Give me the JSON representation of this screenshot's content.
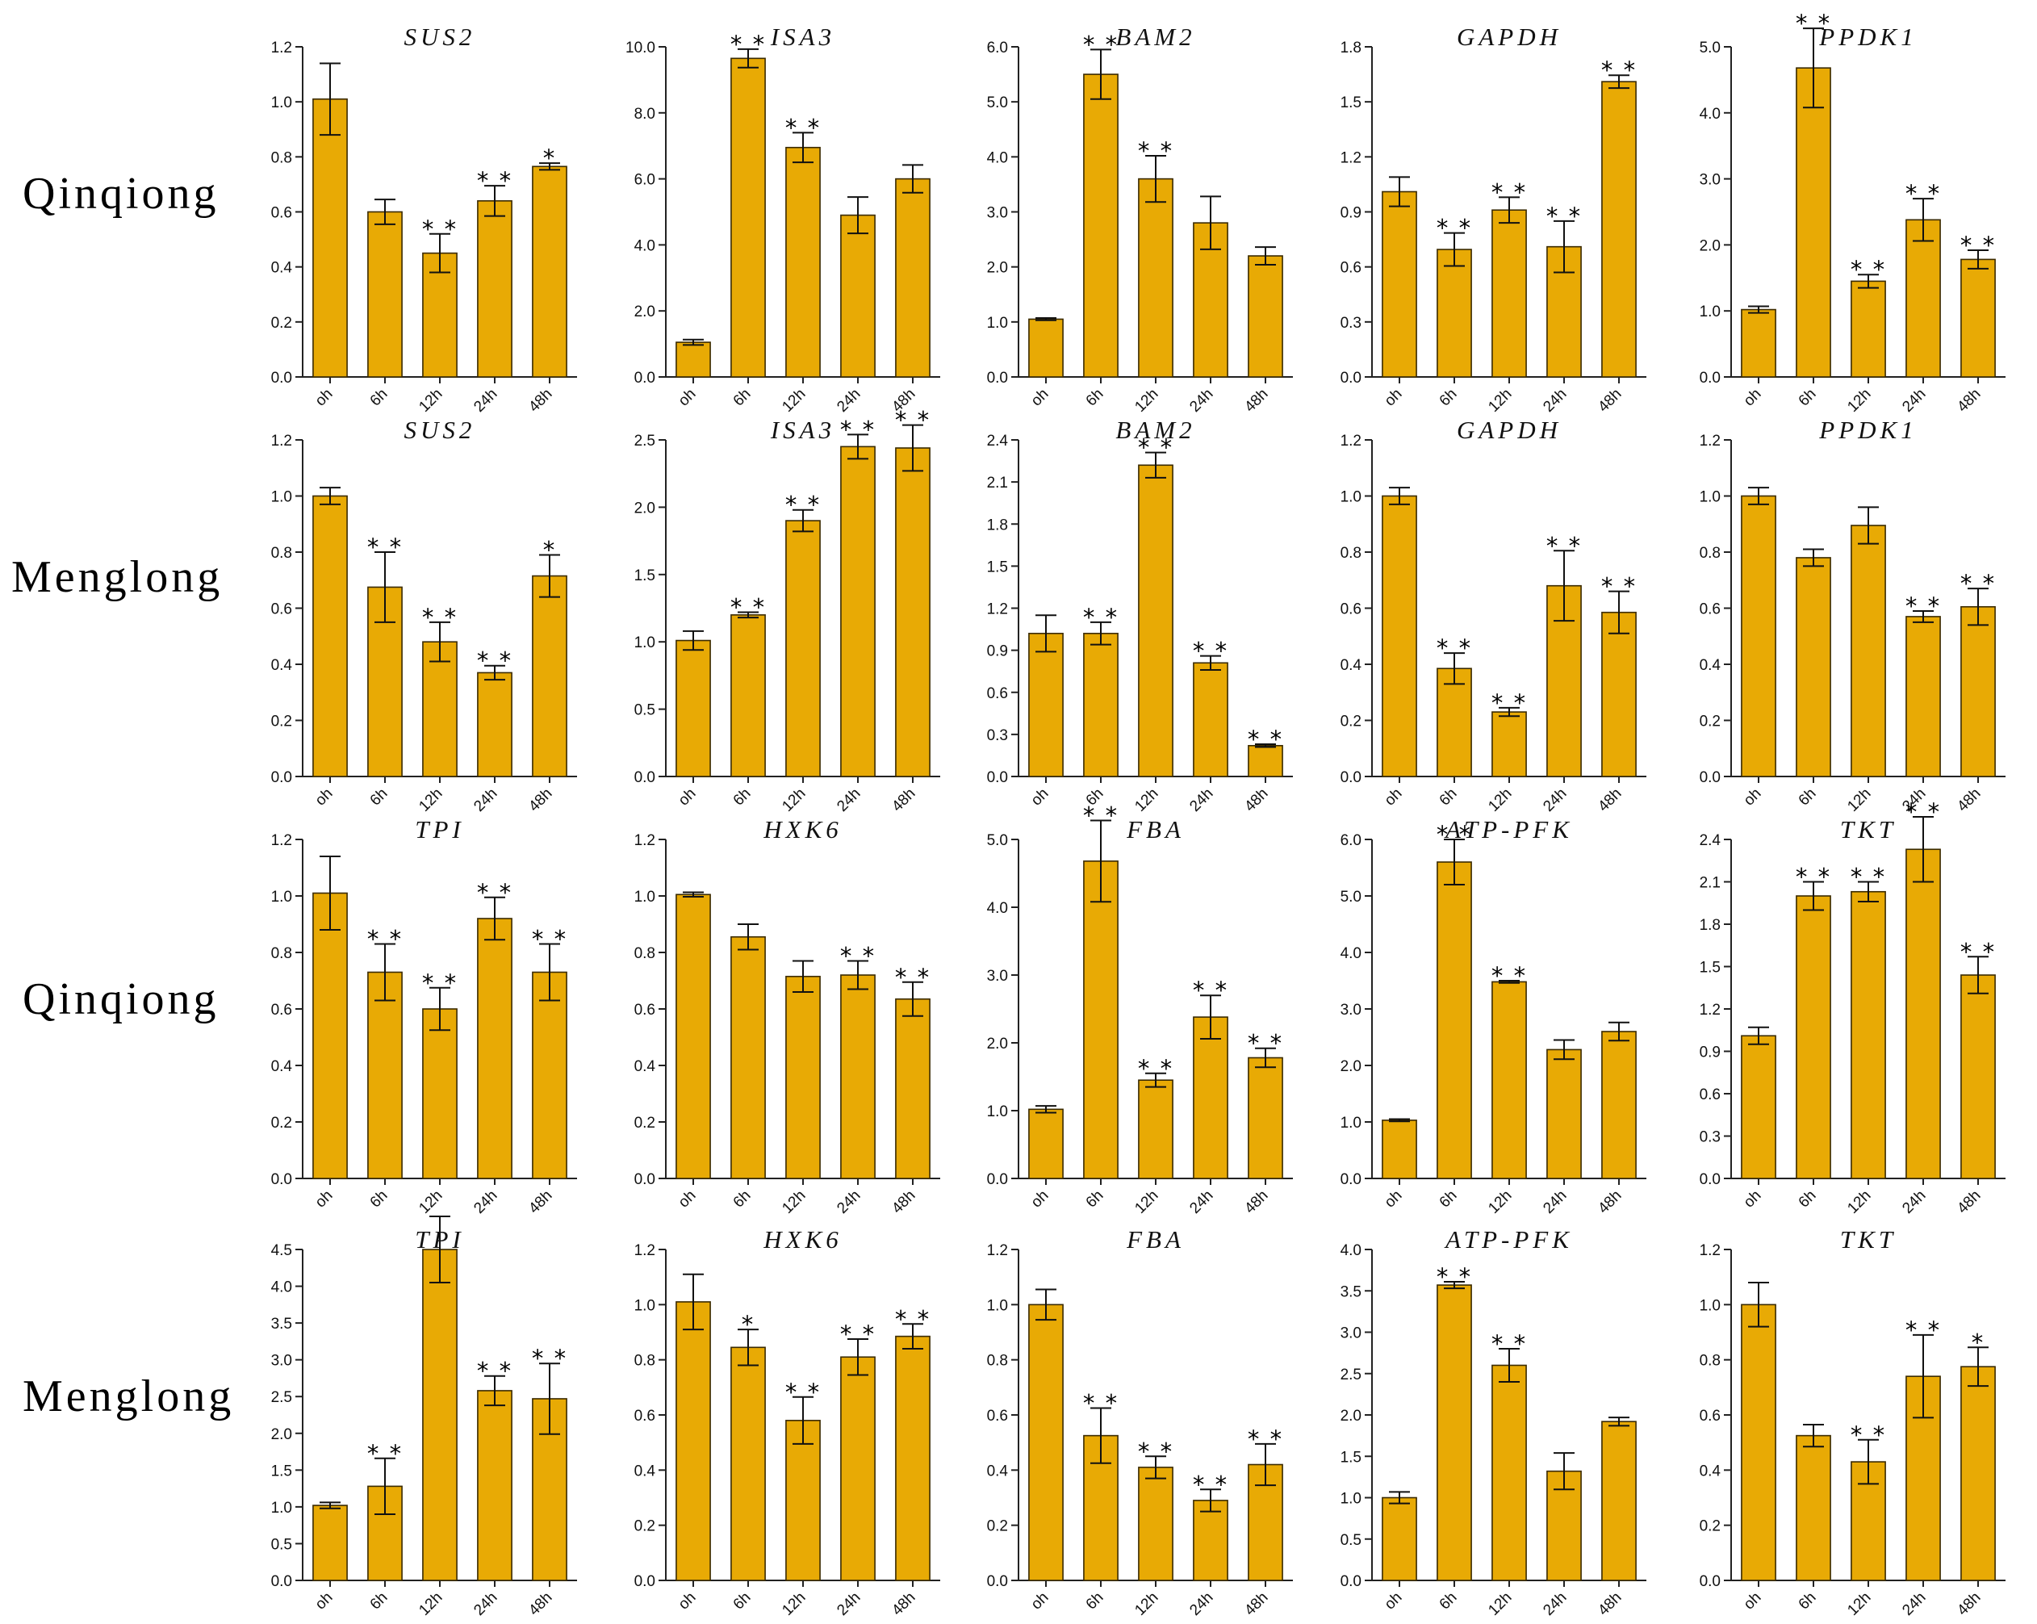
{
  "row_labels": [
    "Qinqiong",
    "Menglong",
    "Qinqiong",
    "Menglong"
  ],
  "bar_color": "#E8AA05",
  "chart_data": [
    {
      "type": "bar",
      "title": "SUS2",
      "categories": [
        "oh",
        "6h",
        "12h",
        "24h",
        "48h"
      ],
      "values": [
        1.01,
        0.6,
        0.45,
        0.64,
        0.765
      ],
      "errors": [
        0.13,
        0.045,
        0.07,
        0.055,
        0.012
      ],
      "significance": [
        "",
        "",
        "**",
        "**",
        "*"
      ],
      "ylim": [
        0,
        1.2
      ],
      "yticks": [
        "0.0",
        "0.2",
        "0.4",
        "0.6",
        "0.8",
        "1.0",
        "1.2"
      ]
    },
    {
      "type": "bar",
      "title": "ISA3",
      "categories": [
        "oh",
        "6h",
        "12h",
        "24h",
        "48h"
      ],
      "values": [
        1.05,
        9.65,
        6.95,
        4.9,
        6.0
      ],
      "errors": [
        0.08,
        0.28,
        0.45,
        0.55,
        0.42
      ],
      "significance": [
        "",
        "**",
        "**",
        "",
        ""
      ],
      "ylim": [
        0,
        10.0
      ],
      "yticks": [
        "0.0",
        "2.0",
        "4.0",
        "6.0",
        "8.0",
        "10.0"
      ]
    },
    {
      "type": "bar",
      "title": "BAM2",
      "categories": [
        "oh",
        "6h",
        "12h",
        "24h",
        "48h"
      ],
      "values": [
        1.05,
        5.5,
        3.6,
        2.8,
        2.2
      ],
      "errors": [
        0.02,
        0.45,
        0.42,
        0.48,
        0.16
      ],
      "significance": [
        "",
        "**",
        "**",
        "",
        ""
      ],
      "ylim": [
        0,
        6.0
      ],
      "yticks": [
        "0.0",
        "1.0",
        "2.0",
        "3.0",
        "4.0",
        "5.0",
        "6.0"
      ]
    },
    {
      "type": "bar",
      "title": "GAPDH",
      "categories": [
        "oh",
        "6h",
        "12h",
        "24h",
        "48h"
      ],
      "values": [
        1.01,
        0.695,
        0.91,
        0.71,
        1.61
      ],
      "errors": [
        0.08,
        0.09,
        0.07,
        0.14,
        0.035
      ],
      "significance": [
        "",
        "**",
        "**",
        "**",
        "**"
      ],
      "ylim": [
        0,
        1.8
      ],
      "yticks": [
        "0.0",
        "0.3",
        "0.6",
        "0.9",
        "1.2",
        "1.5",
        "1.8"
      ]
    },
    {
      "type": "bar",
      "title": "PPDK1",
      "categories": [
        "oh",
        "6h",
        "12h",
        "24h",
        "48h"
      ],
      "values": [
        1.02,
        4.68,
        1.45,
        2.38,
        1.78
      ],
      "errors": [
        0.05,
        0.6,
        0.1,
        0.32,
        0.14
      ],
      "significance": [
        "",
        "**",
        "**",
        "**",
        "**"
      ],
      "ylim": [
        0,
        5.0
      ],
      "yticks": [
        "0.0",
        "1.0",
        "2.0",
        "3.0",
        "4.0",
        "5.0"
      ]
    },
    {
      "type": "bar",
      "title": "SUS2",
      "categories": [
        "oh",
        "6h",
        "12h",
        "24h",
        "48h"
      ],
      "values": [
        1.0,
        0.675,
        0.48,
        0.37,
        0.715
      ],
      "errors": [
        0.03,
        0.125,
        0.07,
        0.025,
        0.075
      ],
      "significance": [
        "",
        "**",
        "**",
        "**",
        "*"
      ],
      "ylim": [
        0,
        1.2
      ],
      "yticks": [
        "0.0",
        "0.2",
        "0.4",
        "0.6",
        "0.8",
        "1.0",
        "1.2"
      ]
    },
    {
      "type": "bar",
      "title": "ISA3",
      "categories": [
        "oh",
        "6h",
        "12h",
        "24h",
        "48h"
      ],
      "values": [
        1.01,
        1.2,
        1.9,
        2.45,
        2.44
      ],
      "errors": [
        0.07,
        0.02,
        0.08,
        0.09,
        0.17
      ],
      "significance": [
        "",
        "**",
        "**",
        "**",
        "**"
      ],
      "ylim": [
        0,
        2.5
      ],
      "yticks": [
        "0.0",
        "0.5",
        "1.0",
        "1.5",
        "2.0",
        "2.5"
      ]
    },
    {
      "type": "bar",
      "title": "BAM2",
      "categories": [
        "oh",
        "6h",
        "12h",
        "24h",
        "48h"
      ],
      "values": [
        1.02,
        1.02,
        2.22,
        0.81,
        0.22
      ],
      "errors": [
        0.13,
        0.08,
        0.09,
        0.05,
        0.01
      ],
      "significance": [
        "",
        "**",
        "**",
        "**",
        "**"
      ],
      "ylim": [
        0,
        2.4
      ],
      "yticks": [
        "0.0",
        "0.3",
        "0.6",
        "0.9",
        "1.2",
        "1.5",
        "1.8",
        "2.1",
        "2.4"
      ]
    },
    {
      "type": "bar",
      "title": "GAPDH",
      "categories": [
        "oh",
        "6h",
        "12h",
        "24h",
        "48h"
      ],
      "values": [
        1.0,
        0.385,
        0.23,
        0.68,
        0.585
      ],
      "errors": [
        0.03,
        0.055,
        0.015,
        0.125,
        0.075
      ],
      "significance": [
        "",
        "**",
        "**",
        "**",
        "**"
      ],
      "ylim": [
        0,
        1.2
      ],
      "yticks": [
        "0.0",
        "0.2",
        "0.4",
        "0.6",
        "0.8",
        "1.0",
        "1.2"
      ]
    },
    {
      "type": "bar",
      "title": "PPDK1",
      "categories": [
        "oh",
        "6h",
        "12h",
        "24h",
        "48h"
      ],
      "values": [
        1.0,
        0.78,
        0.895,
        0.57,
        0.605
      ],
      "errors": [
        0.03,
        0.03,
        0.065,
        0.02,
        0.065
      ],
      "significance": [
        "",
        "",
        "",
        "**",
        "**"
      ],
      "ylim": [
        0,
        1.2
      ],
      "yticks": [
        "0.0",
        "0.2",
        "0.4",
        "0.6",
        "0.8",
        "1.0",
        "1.2"
      ]
    },
    {
      "type": "bar",
      "title": "TPI",
      "categories": [
        "oh",
        "6h",
        "12h",
        "24h",
        "48h"
      ],
      "values": [
        1.01,
        0.73,
        0.6,
        0.92,
        0.73
      ],
      "errors": [
        0.13,
        0.1,
        0.075,
        0.075,
        0.1
      ],
      "significance": [
        "",
        "**",
        "**",
        "**",
        "**"
      ],
      "ylim": [
        0,
        1.2
      ],
      "yticks": [
        "0.0",
        "0.2",
        "0.4",
        "0.6",
        "0.8",
        "1.0",
        "1.2"
      ]
    },
    {
      "type": "bar",
      "title": "HXK6",
      "categories": [
        "oh",
        "6h",
        "12h",
        "24h",
        "48h"
      ],
      "values": [
        1.005,
        0.855,
        0.715,
        0.72,
        0.635
      ],
      "errors": [
        0.008,
        0.045,
        0.055,
        0.05,
        0.06
      ],
      "significance": [
        "",
        "",
        "",
        "**",
        "**"
      ],
      "ylim": [
        0,
        1.2
      ],
      "yticks": [
        "0.0",
        "0.2",
        "0.4",
        "0.6",
        "0.8",
        "1.0",
        "1.2"
      ]
    },
    {
      "type": "bar",
      "title": "FBA",
      "categories": [
        "oh",
        "6h",
        "12h",
        "24h",
        "48h"
      ],
      "values": [
        1.02,
        4.68,
        1.45,
        2.38,
        1.78
      ],
      "errors": [
        0.05,
        0.6,
        0.1,
        0.32,
        0.14
      ],
      "significance": [
        "",
        "**",
        "**",
        "**",
        "**"
      ],
      "ylim": [
        0,
        5.0
      ],
      "yticks": [
        "0.0",
        "1.0",
        "2.0",
        "3.0",
        "4.0",
        "5.0"
      ]
    },
    {
      "type": "bar",
      "title": "ATP-PFK",
      "categories": [
        "oh",
        "6h",
        "12h",
        "24h",
        "48h"
      ],
      "values": [
        1.03,
        5.6,
        3.48,
        2.28,
        2.6
      ],
      "errors": [
        0.02,
        0.4,
        0.02,
        0.17,
        0.16
      ],
      "significance": [
        "",
        "**",
        "**",
        "",
        ""
      ],
      "ylim": [
        0,
        6.0
      ],
      "yticks": [
        "0.0",
        "1.0",
        "2.0",
        "3.0",
        "4.0",
        "5.0",
        "6.0"
      ]
    },
    {
      "type": "bar",
      "title": "TKT",
      "categories": [
        "oh",
        "6h",
        "12h",
        "24h",
        "48h"
      ],
      "values": [
        1.01,
        2.0,
        2.03,
        2.33,
        1.44
      ],
      "errors": [
        0.06,
        0.1,
        0.07,
        0.23,
        0.13
      ],
      "significance": [
        "",
        "**",
        "**",
        "**",
        "**"
      ],
      "ylim": [
        0,
        2.4
      ],
      "yticks": [
        "0.0",
        "0.3",
        "0.6",
        "0.9",
        "1.2",
        "1.5",
        "1.8",
        "2.1",
        "2.4"
      ]
    },
    {
      "type": "bar",
      "title": "TPI",
      "categories": [
        "oh",
        "6h",
        "12h",
        "24h",
        "48h"
      ],
      "values": [
        1.02,
        1.28,
        4.5,
        2.58,
        2.47
      ],
      "errors": [
        0.04,
        0.38,
        0.45,
        0.2,
        0.48
      ],
      "significance": [
        "",
        "**",
        "",
        "**",
        "**"
      ],
      "ylim": [
        0,
        4.5
      ],
      "yticks": [
        "0.0",
        "0.5",
        "1.0",
        "1.5",
        "2.0",
        "2.5",
        "3.0",
        "3.5",
        "4.0",
        "4.5"
      ]
    },
    {
      "type": "bar",
      "title": "HXK6",
      "categories": [
        "oh",
        "6h",
        "12h",
        "24h",
        "48h"
      ],
      "values": [
        1.01,
        0.845,
        0.58,
        0.81,
        0.885
      ],
      "errors": [
        0.1,
        0.065,
        0.085,
        0.065,
        0.045
      ],
      "significance": [
        "",
        "*",
        "**",
        "**",
        "**"
      ],
      "ylim": [
        0,
        1.2
      ],
      "yticks": [
        "0.0",
        "0.2",
        "0.4",
        "0.6",
        "0.8",
        "1.0",
        "1.2"
      ]
    },
    {
      "type": "bar",
      "title": "FBA",
      "categories": [
        "oh",
        "6h",
        "12h",
        "24h",
        "48h"
      ],
      "values": [
        1.0,
        0.525,
        0.41,
        0.29,
        0.42
      ],
      "errors": [
        0.055,
        0.1,
        0.04,
        0.04,
        0.075
      ],
      "significance": [
        "",
        "**",
        "**",
        "**",
        "**"
      ],
      "ylim": [
        0,
        1.2
      ],
      "yticks": [
        "0.0",
        "0.2",
        "0.4",
        "0.6",
        "0.8",
        "1.0",
        "1.2"
      ]
    },
    {
      "type": "bar",
      "title": "ATP-PFK",
      "categories": [
        "oh",
        "6h",
        "12h",
        "24h",
        "48h"
      ],
      "values": [
        1.0,
        3.57,
        2.6,
        1.32,
        1.92
      ],
      "errors": [
        0.07,
        0.04,
        0.2,
        0.22,
        0.05
      ],
      "significance": [
        "",
        "**",
        "**",
        "",
        ""
      ],
      "ylim": [
        0,
        4.0
      ],
      "yticks": [
        "0.0",
        "0.5",
        "1.0",
        "1.5",
        "2.0",
        "2.5",
        "3.0",
        "3.5",
        "4.0"
      ]
    },
    {
      "type": "bar",
      "title": "TKT",
      "categories": [
        "oh",
        "6h",
        "12h",
        "24h",
        "48h"
      ],
      "values": [
        1.0,
        0.525,
        0.43,
        0.74,
        0.775
      ],
      "errors": [
        0.08,
        0.04,
        0.08,
        0.15,
        0.07
      ],
      "significance": [
        "",
        "",
        "**",
        "**",
        "*"
      ],
      "ylim": [
        0,
        1.2
      ],
      "yticks": [
        "0.0",
        "0.2",
        "0.4",
        "0.6",
        "0.8",
        "1.0",
        "1.2"
      ]
    }
  ]
}
